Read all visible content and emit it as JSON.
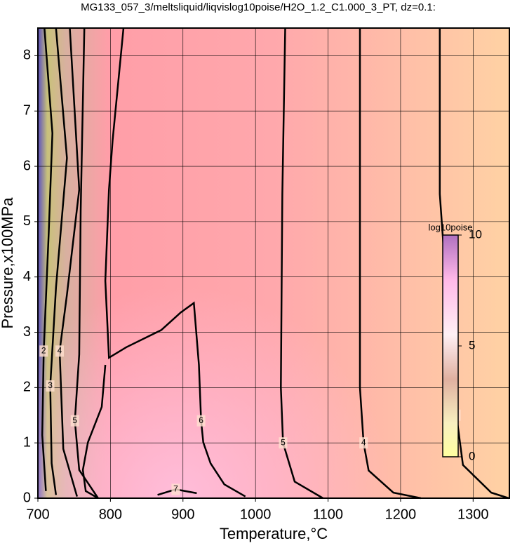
{
  "chart_data": {
    "type": "contour",
    "title": "MG133_057_3/meltsliquid/liqvislog10poise/H2O_1.2_C1.000_3_PT, dz=0.1:",
    "x_label": "Temperature,°C",
    "y_label": "Pressure,x100MPa",
    "xlim": [
      700,
      1350
    ],
    "ylim": [
      0,
      8.5
    ],
    "xticks": [
      700,
      800,
      900,
      1000,
      1100,
      1200,
      1300
    ],
    "yticks": [
      0,
      1,
      2,
      3,
      4,
      5,
      6,
      7,
      8
    ],
    "grid": true,
    "line_color": "#000000",
    "series": [
      {
        "name": "2",
        "x": [
          709,
          720,
          715,
          708,
          706,
          711
        ],
        "values": [
          8.5,
          6.6,
          4.82,
          2.66,
          1.14,
          0.13
        ]
      },
      {
        "name": "3",
        "x": [
          725,
          740,
          725,
          717,
          719,
          725
        ],
        "values": [
          8.5,
          6.15,
          3.81,
          2.03,
          0.63,
          0.06
        ]
      },
      {
        "name": "4",
        "x": [
          744,
          757,
          740,
          730,
          735,
          754
        ],
        "values": [
          8.5,
          5.58,
          3.68,
          2.66,
          0.89,
          0.03
        ]
      },
      {
        "name": "5",
        "x": [
          764,
          759,
          757,
          751,
          757,
          783
        ],
        "values": [
          8.5,
          5.2,
          2.6,
          1.4,
          0.51,
          0
        ]
      },
      {
        "name": "6",
        "x": [
          818,
          803,
          798,
          793,
          798,
          822,
          870,
          897,
          915,
          922,
          925,
          928,
          938,
          957,
          986,
          null,
          793,
          788,
          769,
          762,
          766,
          783
        ],
        "values": [
          8.5,
          6.47,
          5.58,
          3.93,
          2.54,
          2.73,
          3.04,
          3.36,
          3.53,
          2.41,
          1.4,
          1.01,
          0.63,
          0.25,
          0.03,
          null,
          2.41,
          1.65,
          1.01,
          0.51,
          0.13,
          0
        ]
      },
      {
        "name": "7",
        "x": [
          865,
          890,
          919
        ],
        "values": [
          0.06,
          0.16,
          0.09
        ]
      },
      {
        "name": "5",
        "x": [
          1041,
          1037,
          1035,
          1038,
          1054,
          1093
        ],
        "values": [
          8.5,
          5.5,
          2.0,
          1.0,
          0.3,
          0
        ]
      },
      {
        "name": "4",
        "x": [
          1144,
          1144,
          1144,
          1149,
          1156,
          1190,
          1228
        ],
        "values": [
          8.5,
          5.5,
          2.0,
          1.0,
          0.5,
          0.1,
          0
        ]
      },
      {
        "name": "3",
        "x": [
          1254,
          1254,
          1267,
          1277,
          1286,
          1325,
          1349
        ],
        "values": [
          8.5,
          5.5,
          3.1,
          1.5,
          0.6,
          0.1,
          0
        ]
      }
    ],
    "colorbar": {
      "title": "log10poise",
      "lim": [
        0,
        10
      ],
      "ticks": [
        0,
        5,
        10
      ]
    }
  }
}
